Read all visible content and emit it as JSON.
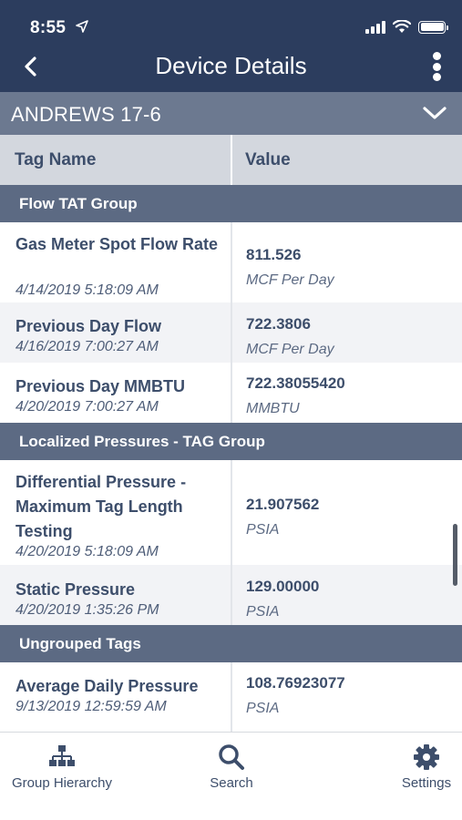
{
  "status_bar": {
    "time": "8:55"
  },
  "nav": {
    "title": "Device Details"
  },
  "device": {
    "name": "ANDREWS 17-6"
  },
  "columns": {
    "tag_name": "Tag Name",
    "value": "Value"
  },
  "groups": [
    {
      "name": "Flow TAT Group",
      "rows": [
        {
          "name": "Gas Meter Spot Flow Rate",
          "date": "4/14/2019 5:18:09 AM",
          "value": "811.526",
          "unit": "MCF Per Day"
        },
        {
          "name": "Previous Day Flow",
          "date": "4/16/2019 7:00:27 AM",
          "value": "722.3806",
          "unit": "MCF Per Day"
        },
        {
          "name": "Previous Day MMBTU",
          "date": "4/20/2019 7:00:27 AM",
          "value": "722.38055420",
          "unit": "MMBTU"
        }
      ]
    },
    {
      "name": "Localized Pressures - TAG Group",
      "rows": [
        {
          "name": "Differential Pressure - Maximum Tag Length Testing",
          "date": "4/20/2019 5:18:09 AM",
          "value": "21.907562",
          "unit": "PSIA"
        },
        {
          "name": "Static Pressure",
          "date": "4/20/2019 1:35:26 PM",
          "value": "129.00000",
          "unit": "PSIA"
        }
      ]
    },
    {
      "name": "Ungrouped Tags",
      "rows": [
        {
          "name": "Average Daily Pressure",
          "date": "9/13/2019 12:59:59 AM",
          "value": "108.76923077",
          "unit": "PSIA"
        }
      ]
    }
  ],
  "tabs": [
    {
      "label": "Group Hierarchy",
      "icon": "hierarchy-icon"
    },
    {
      "label": "Search",
      "icon": "search-icon"
    },
    {
      "label": "Settings",
      "icon": "gear-icon"
    }
  ],
  "colors": {
    "nav_background": "#2c3d5e",
    "device_bar": "#6c7990",
    "group_header": "#5c6a83",
    "column_header": "#d3d7de",
    "text": "#3d4e6b"
  }
}
